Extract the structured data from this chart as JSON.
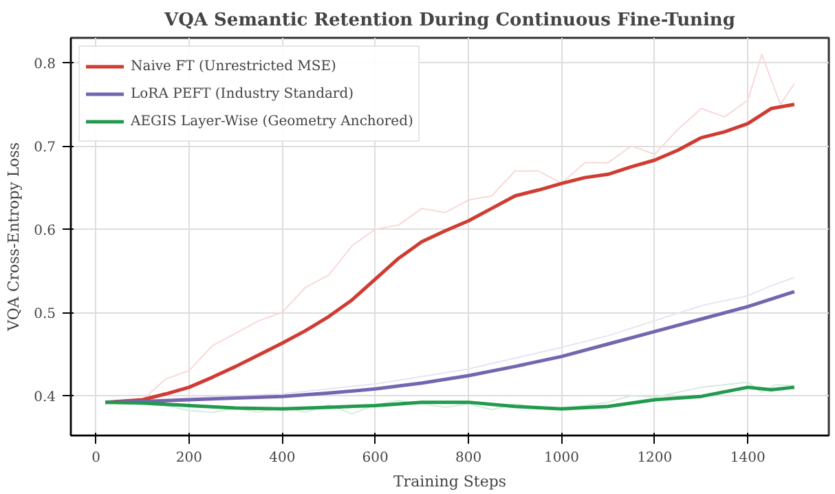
{
  "chart_data": {
    "type": "line",
    "title": "VQA Semantic Retention During Continuous Fine-Tuning",
    "xlabel": "Training Steps",
    "ylabel": "VQA Cross-Entropy Loss",
    "xlim": [
      -54,
      1574
    ],
    "ylim": [
      0.352,
      0.83
    ],
    "xticks": [
      0,
      200,
      400,
      600,
      800,
      1000,
      1200,
      1400
    ],
    "yticks": [
      0.4,
      0.5,
      0.6,
      0.7,
      0.8
    ],
    "grid": true,
    "legend": "top left",
    "marker": "none",
    "line_style": "solid",
    "series": [
      {
        "color": "#f8d9d7",
        "x": [
          20,
          100,
          150,
          200,
          250,
          300,
          350,
          400,
          450,
          500,
          550,
          600,
          650,
          700,
          750,
          800,
          850,
          900,
          950,
          1000,
          1050,
          1100,
          1150,
          1200,
          1250,
          1300,
          1350,
          1400,
          1430,
          1470,
          1500
        ],
        "values": [
          0.392,
          0.395,
          0.42,
          0.43,
          0.46,
          0.475,
          0.49,
          0.5,
          0.53,
          0.545,
          0.58,
          0.6,
          0.605,
          0.625,
          0.62,
          0.635,
          0.64,
          0.67,
          0.67,
          0.655,
          0.68,
          0.68,
          0.7,
          0.69,
          0.72,
          0.745,
          0.735,
          0.755,
          0.81,
          0.75,
          0.775
        ]
      },
      {
        "color": "#e6e3f3",
        "x": [
          20,
          200,
          400,
          600,
          700,
          800,
          900,
          1000,
          1100,
          1200,
          1300,
          1400,
          1450,
          1500
        ],
        "values": [
          0.392,
          0.397,
          0.402,
          0.414,
          0.423,
          0.432,
          0.445,
          0.458,
          0.472,
          0.49,
          0.508,
          0.52,
          0.532,
          0.542
        ]
      },
      {
        "color": "#d5ecde",
        "x": [
          20,
          150,
          200,
          250,
          300,
          350,
          400,
          450,
          500,
          550,
          600,
          650,
          700,
          750,
          800,
          850,
          900,
          950,
          1000,
          1050,
          1100,
          1150,
          1200,
          1250,
          1300,
          1350,
          1400,
          1430,
          1460,
          1500
        ],
        "values": [
          0.392,
          0.388,
          0.382,
          0.38,
          0.385,
          0.38,
          0.386,
          0.38,
          0.389,
          0.378,
          0.389,
          0.394,
          0.39,
          0.386,
          0.39,
          0.383,
          0.39,
          0.385,
          0.385,
          0.388,
          0.392,
          0.4,
          0.398,
          0.404,
          0.41,
          0.413,
          0.416,
          0.404,
          0.413,
          0.412
        ]
      },
      {
        "name": "Naive FT (Unrestricted MSE)",
        "color": "#d03b32",
        "x": [
          20,
          100,
          150,
          200,
          250,
          300,
          350,
          400,
          450,
          500,
          550,
          600,
          650,
          700,
          750,
          800,
          850,
          900,
          950,
          1000,
          1050,
          1100,
          1150,
          1200,
          1250,
          1300,
          1350,
          1400,
          1450,
          1500
        ],
        "values": [
          0.392,
          0.395,
          0.402,
          0.41,
          0.422,
          0.435,
          0.449,
          0.463,
          0.478,
          0.495,
          0.515,
          0.54,
          0.565,
          0.585,
          0.598,
          0.61,
          0.625,
          0.64,
          0.647,
          0.655,
          0.662,
          0.666,
          0.675,
          0.683,
          0.695,
          0.71,
          0.717,
          0.727,
          0.745,
          0.75
        ]
      },
      {
        "name": "LoRA PEFT (Industry Standard)",
        "color": "#7565b0",
        "x": [
          20,
          100,
          200,
          300,
          400,
          500,
          600,
          700,
          800,
          900,
          1000,
          1100,
          1200,
          1300,
          1400,
          1500
        ],
        "values": [
          0.392,
          0.393,
          0.395,
          0.397,
          0.399,
          0.403,
          0.408,
          0.415,
          0.424,
          0.435,
          0.447,
          0.462,
          0.477,
          0.492,
          0.507,
          0.525
        ]
      },
      {
        "name": "AEGIS Layer-Wise (Geometry Anchored)",
        "color": "#229a4e",
        "x": [
          20,
          100,
          200,
          300,
          400,
          500,
          600,
          700,
          800,
          900,
          1000,
          1100,
          1200,
          1300,
          1400,
          1450,
          1500
        ],
        "values": [
          0.392,
          0.391,
          0.388,
          0.385,
          0.384,
          0.386,
          0.388,
          0.392,
          0.392,
          0.387,
          0.384,
          0.387,
          0.395,
          0.399,
          0.41,
          0.407,
          0.41
        ]
      }
    ]
  }
}
